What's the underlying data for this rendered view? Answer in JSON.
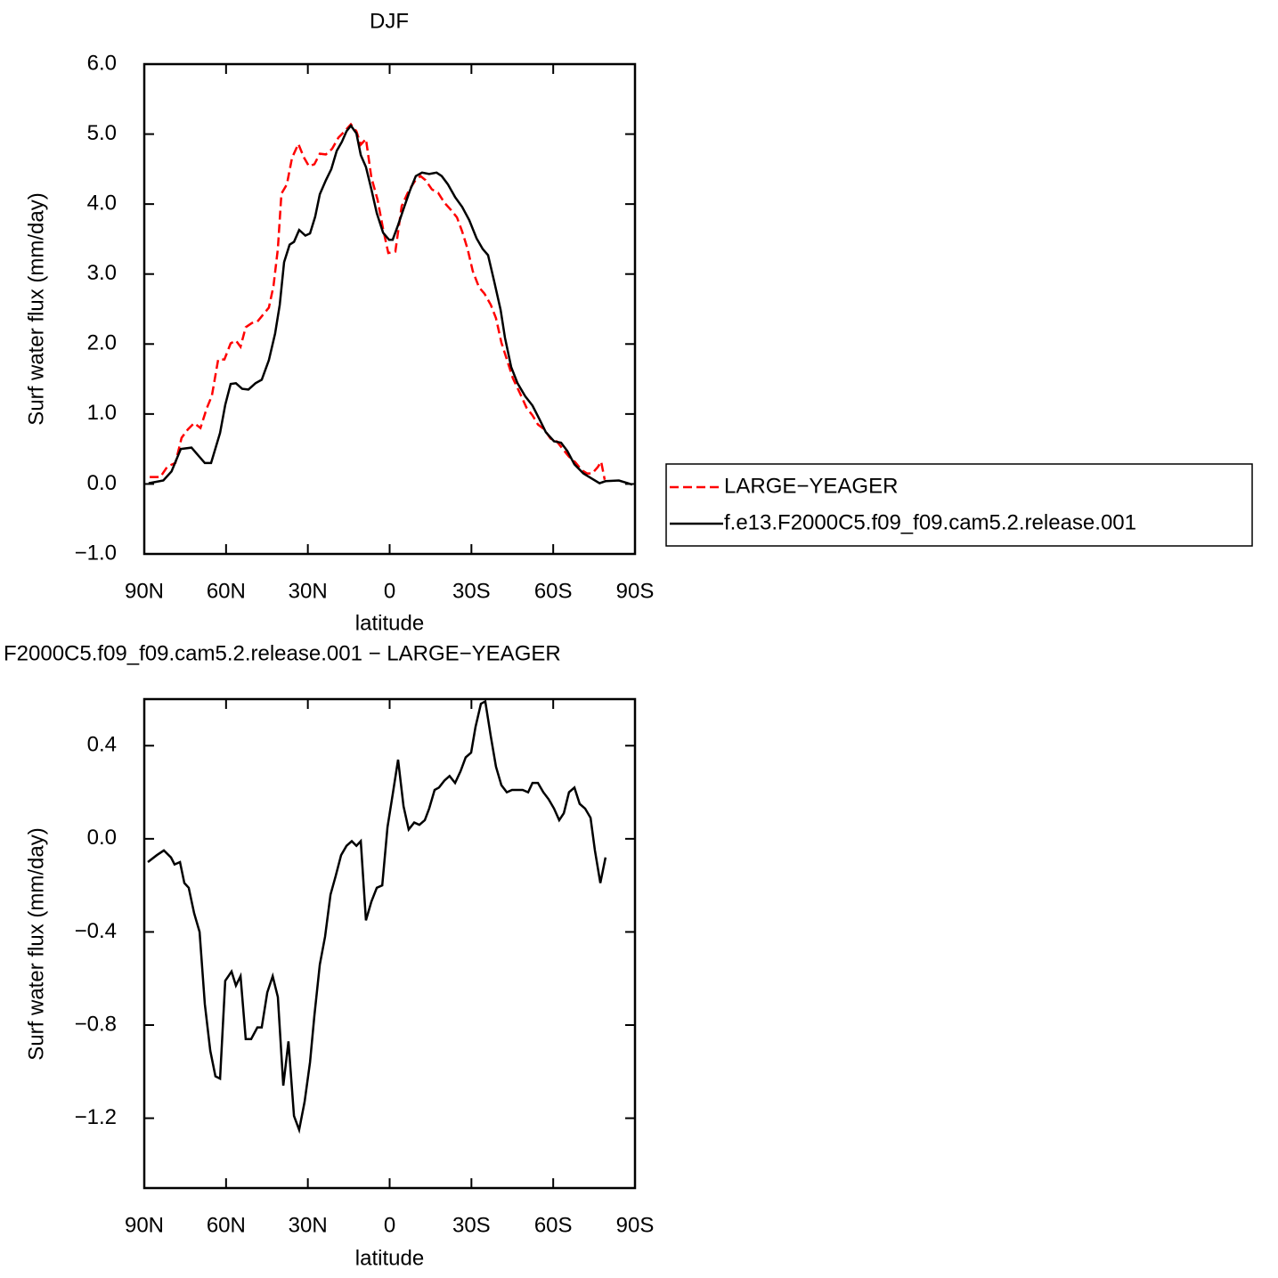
{
  "chart_data": [
    {
      "type": "line",
      "title": "DJF",
      "x_label": "latitude",
      "y_label": "Surf water flux (mm/day)",
      "xlim": [
        90,
        -90
      ],
      "xticks": [
        {
          "value": 90,
          "label": "90N"
        },
        {
          "value": 60,
          "label": "60N"
        },
        {
          "value": 30,
          "label": "30N"
        },
        0,
        {
          "value": -30,
          "label": "30S"
        },
        {
          "value": -60,
          "label": "60S"
        },
        {
          "value": -90,
          "label": "90S"
        }
      ],
      "ylim": [
        -1,
        6
      ],
      "yticks": [
        {
          "value": -1,
          "label": "−1.0"
        },
        {
          "value": 0,
          "label": "0.0"
        },
        {
          "value": 1,
          "label": "1.0"
        },
        {
          "value": 2,
          "label": "2.0"
        },
        {
          "value": 3,
          "label": "3.0"
        },
        {
          "value": 4,
          "label": "4.0"
        },
        {
          "value": 5,
          "label": "5.0"
        },
        {
          "value": 6,
          "label": "6.0"
        }
      ],
      "legend": "right",
      "series": [
        {
          "name": "LARGE−YEAGER",
          "color": "#ff0000",
          "line_style": "dashed",
          "x": [
            88,
            84.1,
            81.5,
            78.6,
            76.3,
            74,
            71.7,
            69.4,
            67.1,
            65.2,
            62.9,
            60.6,
            58.3,
            56.4,
            54.7,
            52.8,
            50.5,
            48.5,
            46.2,
            44.3,
            42.6,
            41,
            39.7,
            37.7,
            35.8,
            33.5,
            31.5,
            29.6,
            27.6,
            25.6,
            23.4,
            21.1,
            18.8,
            16.5,
            14.2,
            12.2,
            10.6,
            8.7,
            6.7,
            4.4,
            2.4,
            0.5,
            -2.1,
            -4.4,
            -7,
            -9.3,
            -11.3,
            -13.2,
            -15.5,
            -17.8,
            -20.1,
            -22.4,
            -24.7,
            -26.6,
            -28.6,
            -30.5,
            -32.8,
            -34.8,
            -37.1,
            -39,
            -41,
            -43,
            -45.2,
            -47.9,
            -50.2,
            -52.4,
            -54.4,
            -56.7,
            -59,
            -61.3,
            -63.5,
            -65.8,
            -68.1,
            -70.4,
            -72.4,
            -74.3,
            -76.3,
            -77.6,
            -78.9
          ],
          "values": [
            0.1,
            0.1,
            0.25,
            0.3,
            0.66,
            0.78,
            0.87,
            0.8,
            1.08,
            1.26,
            1.78,
            1.78,
            2.01,
            2.05,
            1.96,
            2.24,
            2.3,
            2.32,
            2.43,
            2.52,
            2.83,
            3.36,
            4.15,
            4.28,
            4.66,
            4.86,
            4.67,
            4.54,
            4.57,
            4.72,
            4.71,
            4.79,
            4.95,
            5.04,
            5.14,
            5.04,
            4.85,
            4.93,
            4.38,
            4.06,
            3.64,
            3.3,
            3.32,
            3.97,
            4.19,
            4.33,
            4.4,
            4.34,
            4.21,
            4.16,
            4.02,
            3.92,
            3.81,
            3.61,
            3.36,
            3.04,
            2.81,
            2.72,
            2.56,
            2.37,
            2.02,
            1.78,
            1.51,
            1.29,
            1.09,
            0.98,
            0.85,
            0.78,
            0.65,
            0.61,
            0.5,
            0.39,
            0.31,
            0.2,
            0.15,
            0.15,
            0.24,
            0.32,
            0.06
          ]
        },
        {
          "name": "f.e13.F2000C5.f09_f09.cam5.2.release.001",
          "color": "#000000",
          "line_style": "solid",
          "x": [
            88.4,
            83,
            80,
            76.6,
            72.7,
            67.8,
            65.5,
            62.2,
            60.3,
            58.3,
            56.4,
            54.1,
            51.8,
            49.2,
            46.9,
            44.3,
            42,
            40.3,
            38.7,
            36.7,
            35.1,
            33.2,
            30.9,
            29.2,
            27.3,
            25.6,
            23.4,
            21.4,
            19.4,
            17.5,
            15.8,
            14.2,
            12.2,
            10.6,
            8.7,
            6.7,
            4.7,
            2.4,
            0.2,
            -1.1,
            -3.1,
            -5.1,
            -7.4,
            -9.6,
            -11.9,
            -14.5,
            -17.2,
            -19.1,
            -21.4,
            -24,
            -26.6,
            -29.2,
            -31.9,
            -34.1,
            -36.1,
            -38.4,
            -40.7,
            -42.3,
            -44.6,
            -46.9,
            -49.8,
            -52.4,
            -55,
            -57.3,
            -60.3,
            -62.9,
            -65.2,
            -67.8,
            -71.1,
            -74,
            -77,
            -79.2,
            -84.1,
            -87.4,
            -89
          ],
          "values": [
            0.01,
            0.05,
            0.18,
            0.5,
            0.52,
            0.3,
            0.3,
            0.73,
            1.13,
            1.43,
            1.44,
            1.36,
            1.35,
            1.44,
            1.49,
            1.77,
            2.15,
            2.56,
            3.17,
            3.42,
            3.46,
            3.63,
            3.55,
            3.58,
            3.82,
            4.14,
            4.34,
            4.5,
            4.76,
            4.89,
            5.04,
            5.12,
            5.01,
            4.7,
            4.53,
            4.21,
            3.87,
            3.59,
            3.49,
            3.49,
            3.7,
            3.93,
            4.19,
            4.4,
            4.45,
            4.43,
            4.45,
            4.4,
            4.28,
            4.1,
            3.96,
            3.77,
            3.51,
            3.36,
            3.27,
            2.89,
            2.49,
            2.09,
            1.67,
            1.44,
            1.25,
            1.12,
            0.92,
            0.74,
            0.61,
            0.59,
            0.47,
            0.28,
            0.15,
            0.08,
            0.01,
            0.04,
            0.05,
            0.01,
            -0.01
          ]
        }
      ]
    },
    {
      "type": "line",
      "title": "F2000C5.f09_f09.cam5.2.release.001 − LARGE−YEAGER",
      "x_label": "latitude",
      "y_label": "Surf water flux (mm/day)",
      "xlim": [
        90,
        -90
      ],
      "xticks": [
        {
          "value": 90,
          "label": "90N"
        },
        {
          "value": 60,
          "label": "60N"
        },
        {
          "value": 30,
          "label": "30N"
        },
        0,
        {
          "value": -30,
          "label": "30S"
        },
        {
          "value": -60,
          "label": "60S"
        },
        {
          "value": -90,
          "label": "90S"
        }
      ],
      "ylim": [
        -1.5,
        0.6
      ],
      "yticks": [
        {
          "value": -1.2,
          "label": "−1.2"
        },
        {
          "value": -0.8,
          "label": "−0.8"
        },
        {
          "value": -0.4,
          "label": "−0.4"
        },
        {
          "value": 0,
          "label": "0.0"
        },
        0.4
      ],
      "series": [
        {
          "color": "#000000",
          "line_style": "solid",
          "x": [
            88.7,
            85.4,
            82.8,
            80.2,
            78.9,
            76.9,
            75.3,
            73.7,
            71.7,
            69.7,
            67.8,
            65.8,
            63.9,
            62.2,
            60.3,
            58,
            56.4,
            54.7,
            52.8,
            50.8,
            48.5,
            46.9,
            44.9,
            42.9,
            41,
            39,
            37.1,
            35.1,
            33.2,
            31.2,
            29.2,
            27.6,
            25.6,
            23.7,
            21.7,
            19.8,
            17.8,
            15.8,
            13.9,
            12.2,
            10.6,
            8.7,
            6.7,
            4.7,
            2.7,
            0.8,
            -1.1,
            -3.1,
            -5.1,
            -7,
            -9,
            -10.9,
            -12.9,
            -14.5,
            -16.5,
            -18.1,
            -20.1,
            -22,
            -24,
            -26,
            -27.9,
            -29.9,
            -31.5,
            -33.5,
            -35.1,
            -37.1,
            -39,
            -41,
            -43,
            -44.9,
            -46.9,
            -48.8,
            -50.8,
            -52.4,
            -54.4,
            -56.4,
            -58.3,
            -60.3,
            -62.2,
            -63.9,
            -65.8,
            -67.8,
            -69.7,
            -71.7,
            -73.7,
            -75.3,
            -77.3,
            -79.2
          ],
          "values": [
            -0.1,
            -0.07,
            -0.05,
            -0.08,
            -0.11,
            -0.1,
            -0.19,
            -0.21,
            -0.32,
            -0.4,
            -0.71,
            -0.91,
            -1.02,
            -1.03,
            -0.61,
            -0.57,
            -0.63,
            -0.59,
            -0.86,
            -0.86,
            -0.81,
            -0.81,
            -0.66,
            -0.59,
            -0.68,
            -1.06,
            -0.87,
            -1.19,
            -1.25,
            -1.13,
            -0.96,
            -0.76,
            -0.54,
            -0.42,
            -0.24,
            -0.16,
            -0.07,
            -0.03,
            -0.01,
            -0.03,
            -0.01,
            -0.35,
            -0.27,
            -0.21,
            -0.2,
            0.05,
            0.19,
            0.34,
            0.14,
            0.04,
            0.07,
            0.06,
            0.08,
            0.13,
            0.21,
            0.22,
            0.25,
            0.27,
            0.24,
            0.29,
            0.35,
            0.37,
            0.48,
            0.58,
            0.59,
            0.44,
            0.31,
            0.23,
            0.2,
            0.21,
            0.21,
            0.21,
            0.2,
            0.24,
            0.24,
            0.2,
            0.17,
            0.13,
            0.08,
            0.11,
            0.2,
            0.22,
            0.15,
            0.13,
            0.09,
            -0.05,
            -0.19,
            -0.08
          ]
        }
      ]
    }
  ]
}
